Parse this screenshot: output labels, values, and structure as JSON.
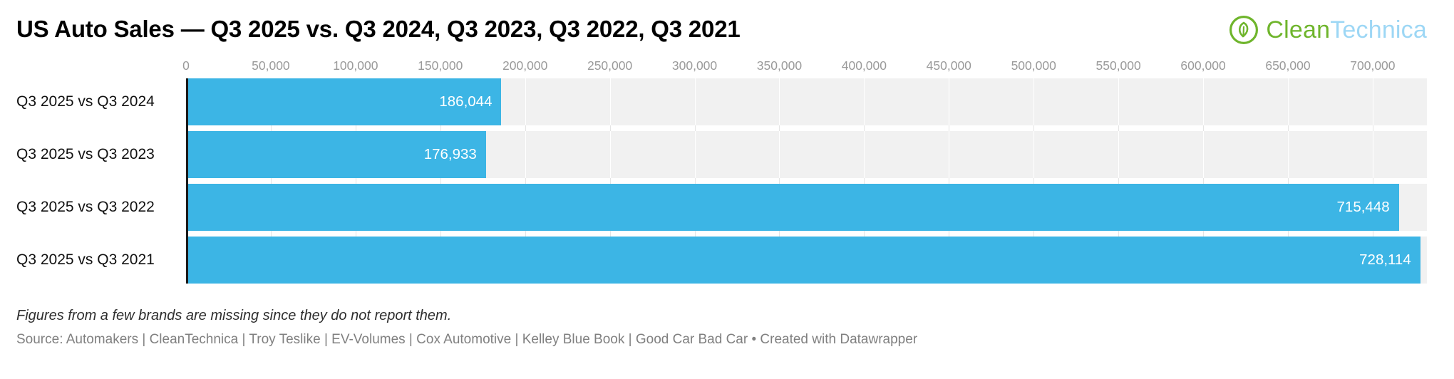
{
  "header": {
    "title": "US Auto Sales — Q3 2025 vs. Q3 2024, Q3 2023, Q3 2022, Q3 2021"
  },
  "logo": {
    "part1": "Clean",
    "part2": "Technica",
    "icon": "leaf-circle-icon",
    "green": "#6fb52c",
    "light_blue": "#9dd7f5"
  },
  "chart_data": {
    "type": "bar",
    "orientation": "horizontal",
    "title": "US Auto Sales — Q3 2025 vs. Q3 2024, Q3 2023, Q3 2022, Q3 2021",
    "categories": [
      "Q3 2025 vs Q3 2024",
      "Q3 2025 vs Q3 2023",
      "Q3 2025 vs Q3 2022",
      "Q3 2025 vs Q3 2021"
    ],
    "values": [
      186044,
      176933,
      715448,
      728114
    ],
    "value_labels": [
      "186,044",
      "176,933",
      "715,448",
      "728,114"
    ],
    "xlim": [
      0,
      732000
    ],
    "ticks": [
      {
        "value": 0,
        "label": "0"
      },
      {
        "value": 50000,
        "label": "50,000"
      },
      {
        "value": 100000,
        "label": "100,000"
      },
      {
        "value": 150000,
        "label": "150,000"
      },
      {
        "value": 200000,
        "label": "200,000"
      },
      {
        "value": 250000,
        "label": "250,000"
      },
      {
        "value": 300000,
        "label": "300,000"
      },
      {
        "value": 350000,
        "label": "350,000"
      },
      {
        "value": 400000,
        "label": "400,000"
      },
      {
        "value": 450000,
        "label": "450,000"
      },
      {
        "value": 500000,
        "label": "500,000"
      },
      {
        "value": 550000,
        "label": "550,000"
      },
      {
        "value": 600000,
        "label": "600,000"
      },
      {
        "value": 650000,
        "label": "650,000"
      },
      {
        "value": 700000,
        "label": "700,000"
      }
    ],
    "bar_color": "#3cb5e5",
    "band_color": "#f1f1f1",
    "grid": true,
    "legend": "none",
    "xlabel": "",
    "ylabel": ""
  },
  "footer": {
    "note": "Figures from a few brands are missing since they do not report them.",
    "source": "Source: Automakers | CleanTechnica | Troy Teslike | EV-Volumes | Cox Automotive | Kelley Blue Book | Good Car Bad Car • Created with Datawrapper"
  }
}
